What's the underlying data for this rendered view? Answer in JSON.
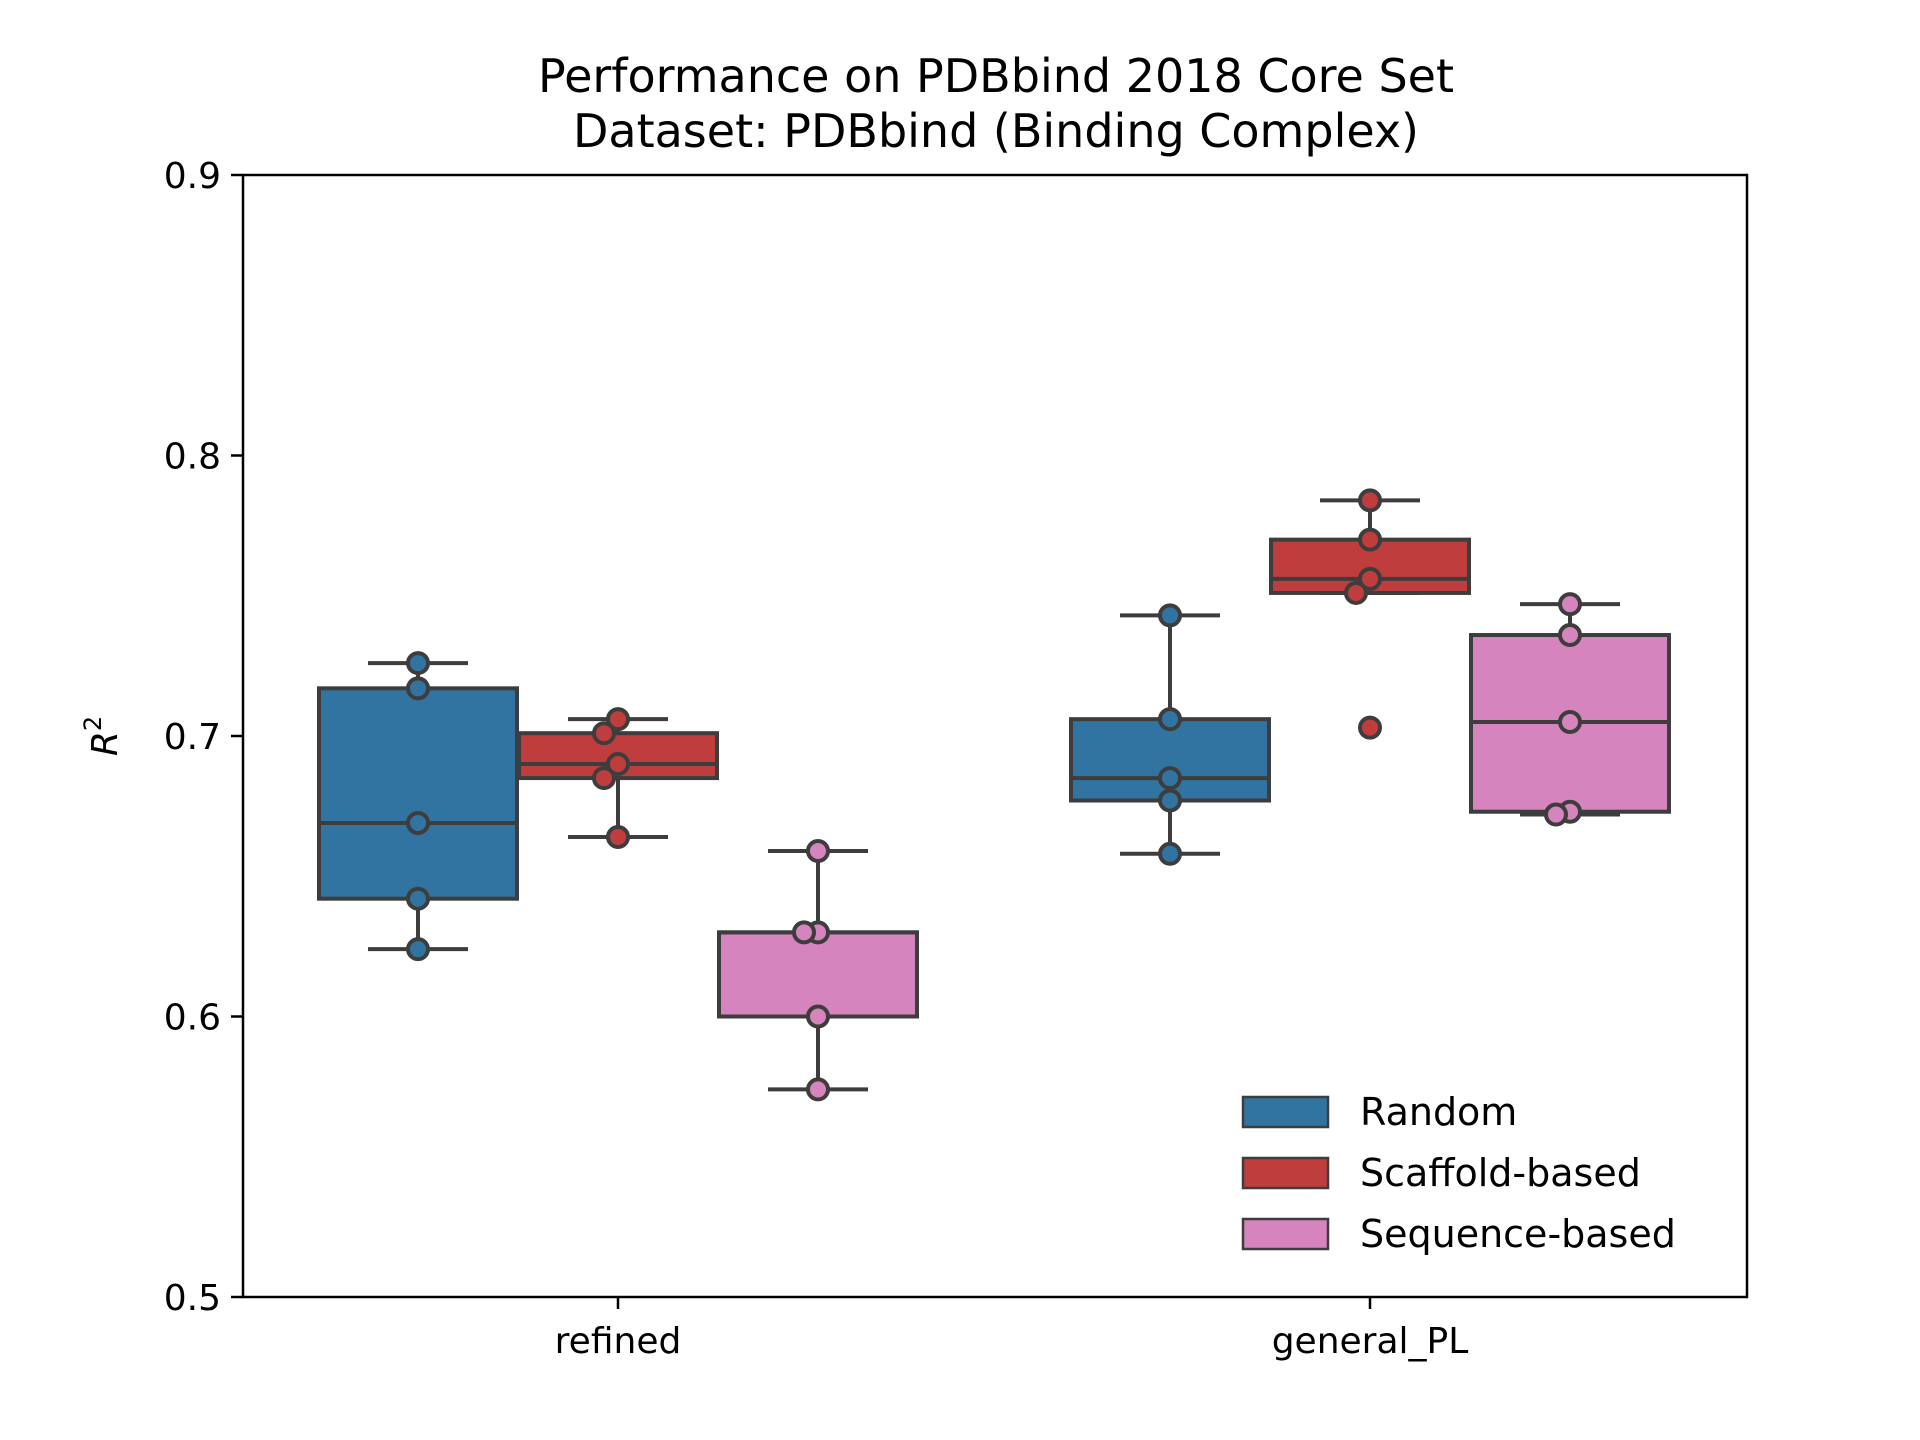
{
  "chart_data": {
    "type": "box",
    "title": "Performance on PDBbind 2018 Core Set",
    "subtitle": "Dataset: PDBbind (Binding Complex)",
    "xlabel": "",
    "ylabel": "R",
    "ylabel_superscript": "2",
    "ylim": [
      0.5,
      0.9
    ],
    "yticks": [
      "0.5",
      "0.6",
      "0.7",
      "0.8",
      "0.9"
    ],
    "grid": false,
    "legend_position": "lower-right",
    "categories": [
      "refined",
      "general_PL"
    ],
    "series": [
      {
        "name": "Random",
        "color": "#3274a1",
        "points": [
          [
            0.726,
            0.717,
            0.669,
            0.642,
            0.624
          ],
          [
            0.743,
            0.706,
            0.685,
            0.677,
            0.658
          ]
        ]
      },
      {
        "name": "Scaffold-based",
        "color": "#c03d3e",
        "points": [
          [
            0.706,
            0.701,
            0.69,
            0.685,
            0.664
          ],
          [
            0.784,
            0.77,
            0.756,
            0.751,
            0.703
          ]
        ]
      },
      {
        "name": "Sequence-based",
        "color": "#d684bd",
        "points": [
          [
            0.659,
            0.63,
            0.63,
            0.6,
            0.574
          ],
          [
            0.747,
            0.736,
            0.705,
            0.673,
            0.672
          ]
        ]
      }
    ]
  }
}
